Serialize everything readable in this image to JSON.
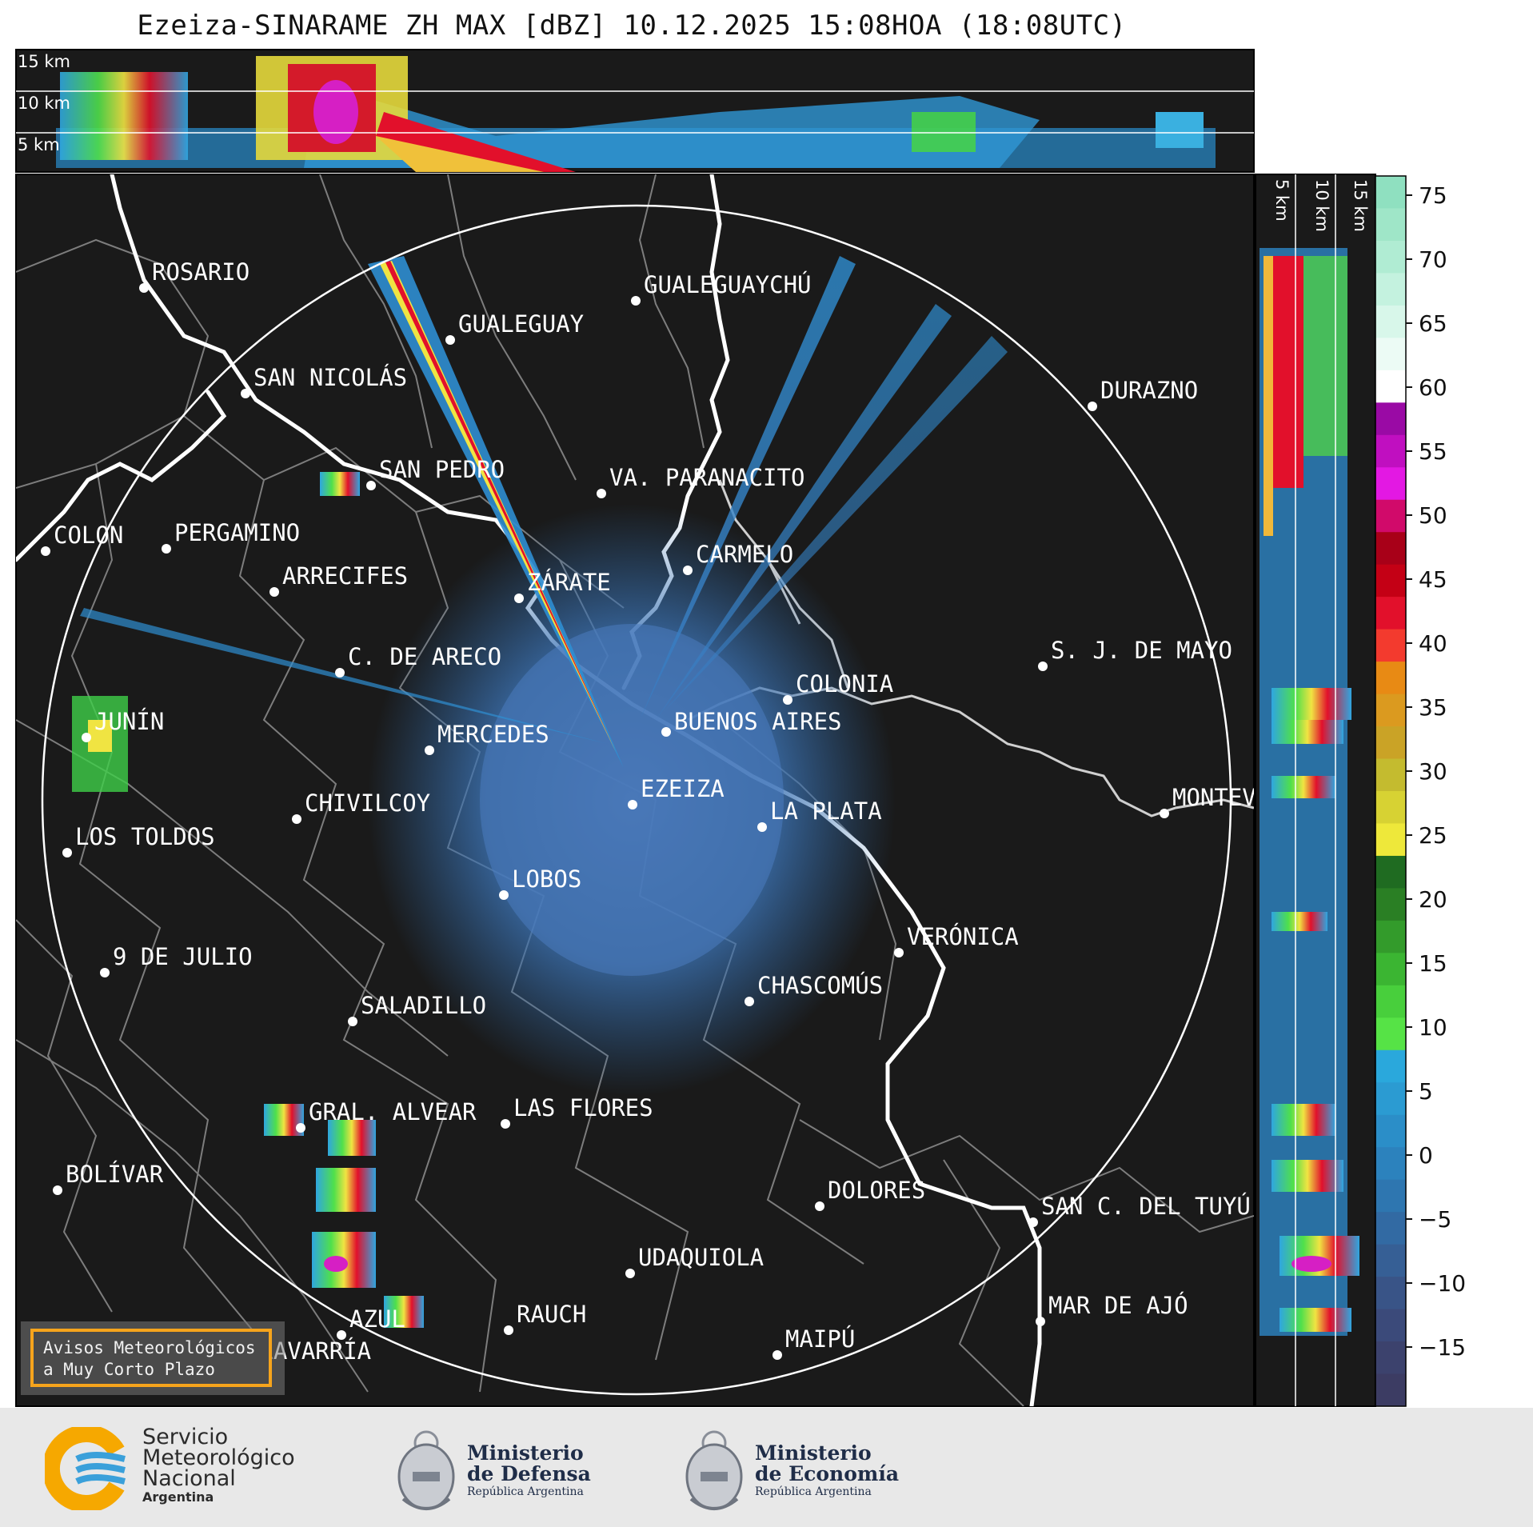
{
  "title": "Ezeiza-SINARAME ZH MAX [dBZ] 10.12.2025 15:08HOA (18:08UTC)",
  "top_panel": {
    "km_labels": [
      "15 km",
      "10 km",
      "5 km"
    ]
  },
  "side_panel": {
    "km_labels": [
      "5 km",
      "10 km",
      "15 km"
    ]
  },
  "colorbar": {
    "ticks": [
      "75",
      "70",
      "65",
      "60",
      "55",
      "50",
      "45",
      "40",
      "35",
      "30",
      "25",
      "20",
      "15",
      "10",
      "5",
      "0",
      "−5",
      "−10",
      "−15"
    ]
  },
  "cities": [
    {
      "name": "ROSARIO"
    },
    {
      "name": "GUALEGUAYCHÚ"
    },
    {
      "name": "GUALEGUAY"
    },
    {
      "name": "SAN NICOLÁS"
    },
    {
      "name": "DURAZNO"
    },
    {
      "name": "SAN PEDRO"
    },
    {
      "name": "VA. PARANACITO"
    },
    {
      "name": "COLON"
    },
    {
      "name": "PERGAMINO"
    },
    {
      "name": "CARMELO"
    },
    {
      "name": "ARRECIFES"
    },
    {
      "name": "ZÁRATE"
    },
    {
      "name": "S. J. DE MAYO"
    },
    {
      "name": "C. DE ARECO"
    },
    {
      "name": "COLONIA"
    },
    {
      "name": "JUNÍN"
    },
    {
      "name": "BUENOS AIRES"
    },
    {
      "name": "MERCEDES"
    },
    {
      "name": "EZEIZA"
    },
    {
      "name": "MONTEV"
    },
    {
      "name": "CHIVILCOY"
    },
    {
      "name": "LA PLATA"
    },
    {
      "name": "LOS TOLDOS"
    },
    {
      "name": "LOBOS"
    },
    {
      "name": "VERÓNICA"
    },
    {
      "name": "9 DE JULIO"
    },
    {
      "name": "CHASCOMÚS"
    },
    {
      "name": "SALADILLO"
    },
    {
      "name": "GRAL. ALVEAR"
    },
    {
      "name": "LAS FLORES"
    },
    {
      "name": "BOLÍVAR"
    },
    {
      "name": "DOLORES"
    },
    {
      "name": "SAN C. DEL TUYÚ"
    },
    {
      "name": "UDAQUIOLA"
    },
    {
      "name": "MAR DE AJÓ"
    },
    {
      "name": "RAUCH"
    },
    {
      "name": "AZUL"
    },
    {
      "name": "OLAVARRÍA"
    },
    {
      "name": "MAIPÚ"
    }
  ],
  "aviso": {
    "line1": "Avisos Meteorológicos",
    "line2": "a Muy Corto Plazo"
  },
  "footer": {
    "smn": {
      "line1": "Servicio",
      "line2": "Meteorológico",
      "line3": "Nacional",
      "line4": "Argentina"
    },
    "defensa": {
      "line1": "Ministerio",
      "line2": "de Defensa",
      "line3": "República Argentina"
    },
    "economia": {
      "line1": "Ministerio",
      "line2": "de Economía",
      "line3": "República Argentina"
    }
  }
}
